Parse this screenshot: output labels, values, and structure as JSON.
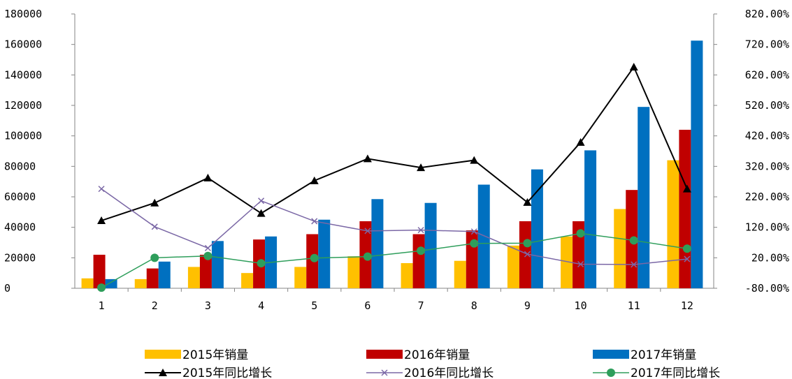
{
  "chart_data": {
    "type": "bar",
    "title": "",
    "categories": [
      "1",
      "2",
      "3",
      "4",
      "5",
      "6",
      "7",
      "8",
      "9",
      "10",
      "11",
      "12"
    ],
    "y_left_ticks": [
      "0",
      "20000",
      "40000",
      "60000",
      "80000",
      "100000",
      "120000",
      "140000",
      "160000",
      "180000"
    ],
    "y_right_ticks": [
      "-80.00%",
      "20.00%",
      "120.00%",
      "220.00%",
      "320.00%",
      "420.00%",
      "520.00%",
      "620.00%",
      "720.00%",
      "820.00%"
    ],
    "ylim_left": [
      0,
      180000
    ],
    "ylim_right": [
      -80,
      820
    ],
    "bar_series": [
      {
        "name": "2015年销量",
        "color": "#FFC000",
        "values": [
          6500,
          6000,
          14000,
          10000,
          14000,
          21000,
          16500,
          18000,
          28000,
          34000,
          52000,
          84000
        ]
      },
      {
        "name": "2016年销量",
        "color": "#C00000",
        "values": [
          22000,
          13000,
          22000,
          32000,
          35500,
          44000,
          35500,
          38000,
          44000,
          44000,
          64500,
          104000
        ]
      },
      {
        "name": "2017年销量",
        "color": "#0070C0",
        "values": [
          6000,
          17500,
          31000,
          34000,
          45000,
          58500,
          56000,
          68000,
          78000,
          90500,
          119000,
          162500
        ]
      }
    ],
    "line_series": [
      {
        "name": "2015年同比增长",
        "color": "#000000",
        "marker": "triangle",
        "values": [
          142,
          200,
          282,
          166,
          273,
          345,
          316,
          340,
          202,
          399,
          646,
          246
        ]
      },
      {
        "name": "2016年同比增长",
        "color": "#7B68A6",
        "marker": "x",
        "values": [
          246,
          122,
          52,
          207,
          140,
          108,
          111,
          106,
          32,
          -1,
          -2,
          16
        ]
      },
      {
        "name": "2017年同比增长",
        "color": "#2E9E5B",
        "marker": "circle",
        "values": [
          -78,
          20,
          26,
          2,
          19,
          24,
          43,
          67,
          68,
          100,
          77,
          50
        ]
      }
    ],
    "grid": false,
    "legend_position": "bottom"
  }
}
